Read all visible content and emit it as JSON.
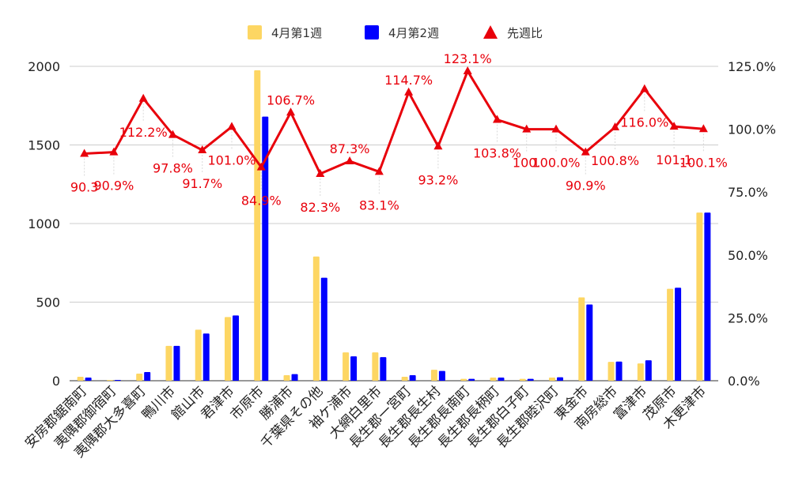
{
  "chart_data": {
    "type": "bar",
    "title": "",
    "categories": [
      "安房郡鋸南町",
      "夷隅郡御宿町",
      "夷隅郡大多喜町",
      "鴨川市",
      "館山市",
      "君津市",
      "市原市",
      "勝浦市",
      "千葉県その他",
      "袖ケ浦市",
      "大網白里市",
      "長生郡一宮町",
      "長生郡長生村",
      "長生郡長南町",
      "長生郡長柄町",
      "長生郡白子町",
      "長生郡睦沢町",
      "東金市",
      "南房総市",
      "富津市",
      "茂原市",
      "木更津市"
    ],
    "series": [
      {
        "name": "4月第1週",
        "type": "bar",
        "axis": "left",
        "color": "#fdd663",
        "values": [
          25,
          5,
          45,
          222,
          325,
          405,
          1975,
          35,
          790,
          180,
          180,
          25,
          70,
          12,
          20,
          12,
          20,
          530,
          120,
          110,
          585,
          1070
        ]
      },
      {
        "name": "4月第2週",
        "type": "bar",
        "axis": "left",
        "color": "#0000ff",
        "values": [
          20,
          5,
          55,
          222,
          300,
          415,
          1680,
          42,
          655,
          155,
          150,
          35,
          62,
          12,
          20,
          12,
          22,
          485,
          122,
          130,
          592,
          1070
        ]
      },
      {
        "name": "先週比",
        "type": "line",
        "axis": "right",
        "color": "#e8000b",
        "values": [
          90.3,
          90.9,
          112.2,
          97.8,
          91.7,
          101.0,
          84.9,
          106.7,
          82.3,
          87.3,
          83.1,
          114.7,
          93.2,
          123.1,
          103.8,
          100.0,
          100.0,
          90.9,
          100.8,
          116.0,
          101.1,
          100.1
        ],
        "labels": [
          "90.3",
          "90.9%",
          "112.2%",
          "97.8%",
          "91.7%",
          "101.0%",
          "84.9%",
          "106.7%",
          "82.3%",
          "87.3%",
          "83.1%",
          "114.7%",
          "93.2%",
          "123.1%",
          "103.8%",
          "100.",
          "100.0%",
          "90.9%",
          "100.8%",
          "116.0%",
          "101.1",
          "100.1%"
        ],
        "label_side": [
          "below",
          "below",
          "below",
          "below",
          "below",
          "below",
          "below",
          "above",
          "below",
          "above",
          "below",
          "above",
          "below",
          "above",
          "below",
          "below",
          "below",
          "below",
          "below",
          "below",
          "below",
          "below"
        ]
      }
    ],
    "y_left": {
      "min": 0,
      "max": 2000,
      "ticks": [
        "0",
        "500",
        "1000",
        "1500",
        "2000"
      ]
    },
    "y_right": {
      "min": 0,
      "max": 125,
      "ticks": [
        "0.0%",
        "25.0%",
        "50.0%",
        "75.0%",
        "100.0%",
        "125.0%"
      ]
    },
    "grid": true,
    "legend_position": "top"
  }
}
